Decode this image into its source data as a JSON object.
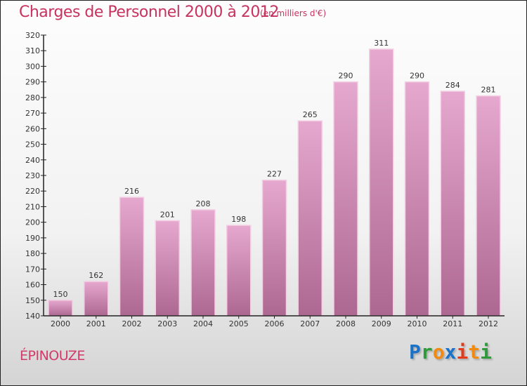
{
  "chart_data": {
    "type": "bar",
    "title": "Charges de Personnel 2000 à 2012",
    "subtitle": "(en milliers d'€)",
    "categories": [
      "2000",
      "2001",
      "2002",
      "2003",
      "2004",
      "2005",
      "2006",
      "2007",
      "2008",
      "2009",
      "2010",
      "2011",
      "2012"
    ],
    "values": [
      150,
      162,
      216,
      201,
      208,
      198,
      227,
      265,
      290,
      311,
      290,
      284,
      281
    ],
    "ylim": [
      140,
      320
    ],
    "yticks": [
      140,
      150,
      160,
      170,
      180,
      190,
      200,
      210,
      220,
      230,
      240,
      250,
      260,
      270,
      280,
      290,
      300,
      310,
      320
    ],
    "xlabel": "",
    "ylabel": "",
    "colors": {
      "bar_top": "#e6a8cf",
      "bar_bottom": "#ad6891",
      "title": "#c8325f"
    }
  },
  "location": "ÉPINOUZE",
  "logo": {
    "letters": [
      "P",
      "r",
      "o",
      "x",
      "i",
      "t",
      "i"
    ],
    "colors": [
      "#1a73c8",
      "#2e9a3c",
      "#f08a10",
      "#1a73c8",
      "#e23a1a",
      "#f08a10",
      "#2e9a3c"
    ]
  }
}
